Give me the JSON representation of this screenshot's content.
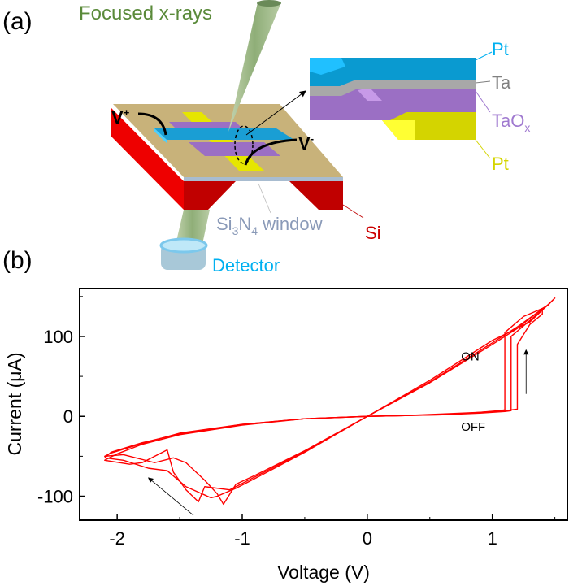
{
  "panels": {
    "a": "(a)",
    "b": "(b)"
  },
  "diagram": {
    "beam_label": "Focused x-rays",
    "v_plus": "V",
    "v_plus_sup": "+",
    "v_minus": "V",
    "v_minus_sup": "-",
    "window_label_si": "Si",
    "window_label_sub3": "3",
    "window_label_n": "N",
    "window_label_sub4": "4",
    "window_label_rest": " window",
    "si_label": "Si",
    "detector_label": "Detector",
    "layers": [
      {
        "name": "Pt",
        "color": "#00b0f0"
      },
      {
        "name": "Ta",
        "color": "#808080"
      },
      {
        "name": "TaO",
        "sub": "x",
        "color": "#a07ad0"
      },
      {
        "name": "Pt",
        "color": "#d4d400"
      }
    ],
    "colors": {
      "substrate": "#c8b27a",
      "si": "#ee0000",
      "beam": "#a8c090",
      "top_electrode": "#1a9ed4",
      "oxide": "#9b6fc4",
      "bottom_electrode": "#e6e600"
    }
  },
  "chart_data": {
    "type": "line",
    "xlabel": "Voltage (V)",
    "ylabel": "Current (μA)",
    "xlim": [
      -2.3,
      1.6
    ],
    "ylim": [
      -130,
      160
    ],
    "xticks": [
      -2,
      -1,
      0,
      1
    ],
    "yticks": [
      -100,
      0,
      100
    ],
    "grid": false,
    "color": "#ff0000",
    "annotations": [
      {
        "text": "ON",
        "x": 0.75,
        "y": 70
      },
      {
        "text": "OFF",
        "x": 0.75,
        "y": -18
      }
    ],
    "series": [
      {
        "x": [
          0,
          0.3,
          0.6,
          0.9,
          1.1,
          1.15,
          1.15,
          1.3,
          1.45,
          1.5,
          1.3,
          1.0,
          0.5,
          0,
          -0.5,
          -0.9,
          -1.05,
          -1.2,
          -1.25,
          -1.35,
          -1.45,
          -1.6,
          -1.75,
          -1.95,
          -2.1,
          -2.05,
          -1.8,
          -1.5,
          -1.0,
          -0.5,
          0
        ],
        "y": [
          0,
          1,
          2,
          4,
          6,
          7,
          100,
          120,
          140,
          148,
          118,
          95,
          45,
          0,
          -45,
          -78,
          -90,
          -100,
          -102,
          -95,
          -88,
          -68,
          -65,
          -55,
          -52,
          -45,
          -33,
          -22,
          -10,
          -3,
          0
        ]
      },
      {
        "x": [
          0,
          0.3,
          0.6,
          0.9,
          1.05,
          1.1,
          1.1,
          1.25,
          1.4,
          1.45,
          1.2,
          1.0,
          0.5,
          0,
          -0.5,
          -0.9,
          -1.1,
          -1.3,
          -1.35,
          -1.45,
          -1.55,
          -1.6,
          -1.8,
          -1.9,
          -2.1,
          -2.0,
          -1.8,
          -1.5,
          -1.0,
          -0.5,
          0
        ],
        "y": [
          0,
          1,
          2,
          5,
          7,
          8,
          105,
          125,
          135,
          140,
          112,
          92,
          43,
          0,
          -44,
          -76,
          -92,
          -88,
          -107,
          -92,
          -70,
          -42,
          -58,
          -60,
          -55,
          -47,
          -35,
          -23,
          -11,
          -3,
          0
        ]
      },
      {
        "x": [
          0,
          0.3,
          0.6,
          0.9,
          1.1,
          1.2,
          1.2,
          1.3,
          1.4,
          1.4,
          1.2,
          1.0,
          0.5,
          0,
          -0.5,
          -0.9,
          -1.05,
          -1.15,
          -1.2,
          -1.3,
          -1.45,
          -1.55,
          -1.7,
          -1.95,
          -2.1,
          -2.05,
          -1.8,
          -1.5,
          -1.0,
          -0.5,
          0
        ],
        "y": [
          0,
          1,
          3,
          5,
          7,
          9,
          90,
          115,
          128,
          135,
          110,
          90,
          42,
          0,
          -43,
          -74,
          -85,
          -110,
          -97,
          -80,
          -58,
          -52,
          -58,
          -48,
          -50,
          -46,
          -34,
          -21,
          -10,
          -3,
          0
        ]
      }
    ],
    "arrows": [
      {
        "from": [
          1.27,
          28
        ],
        "to": [
          1.27,
          83
        ]
      },
      {
        "from": [
          -1.39,
          -124
        ],
        "to": [
          -1.75,
          -77
        ]
      }
    ]
  }
}
